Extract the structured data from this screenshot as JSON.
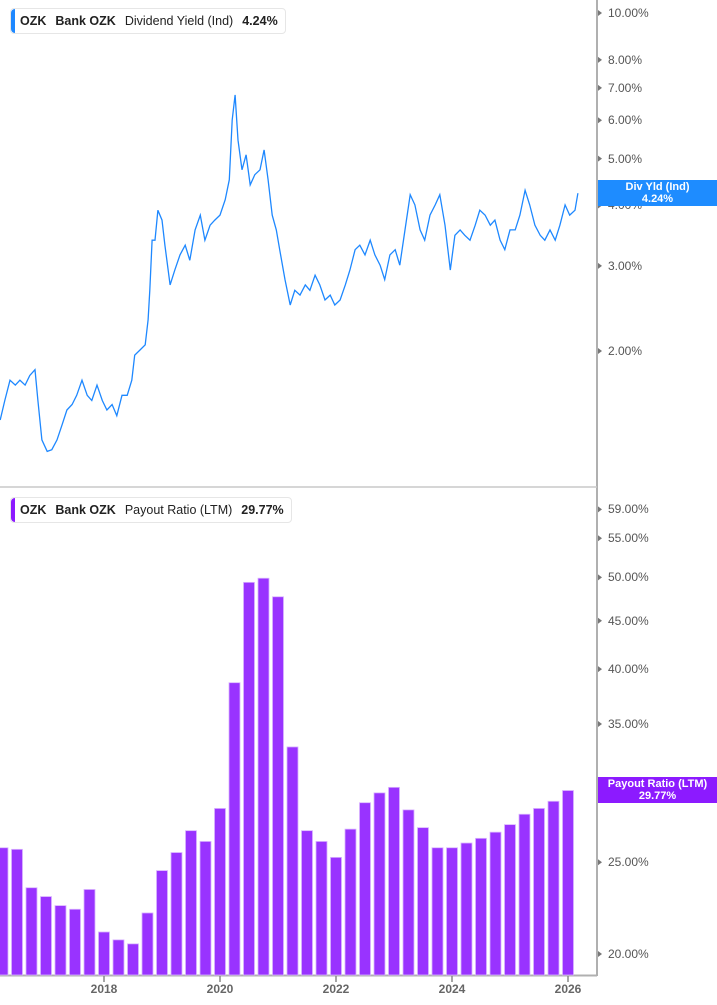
{
  "colors": {
    "yield_line": "#1e88ff",
    "payout_bar": "#9933ff",
    "payout_tag": "#8c1aff",
    "yield_tag": "#1e8cff"
  },
  "top_legend": {
    "ticker": "OZK",
    "name": "Bank OZK",
    "metric": "Dividend Yield (Ind)",
    "value": "4.24%"
  },
  "bottom_legend": {
    "ticker": "OZK",
    "name": "Bank OZK",
    "metric": "Payout Ratio (LTM)",
    "value": "29.77%"
  },
  "top_tag": {
    "label": "Div Yld (Ind)",
    "value": "4.24%"
  },
  "bottom_tag": {
    "label": "Payout Ratio (LTM)",
    "value": "29.77%"
  },
  "chart_data": [
    {
      "type": "line",
      "name": "Dividend Yield (Ind)",
      "y_scale": "log",
      "yticks": [
        2,
        3,
        4,
        5,
        6,
        7,
        8,
        10
      ],
      "ytick_labels": [
        "2.00%",
        "3.00%",
        "4.00%",
        "5.00%",
        "6.00%",
        "7.00%",
        "8.00%",
        "10.00%"
      ],
      "x": [
        2016.21,
        2016.29,
        2016.38,
        2016.47,
        2016.55,
        2016.64,
        2016.72,
        2016.81,
        2016.86,
        2016.93,
        2017.02,
        2017.1,
        2017.19,
        2017.28,
        2017.36,
        2017.45,
        2017.53,
        2017.62,
        2017.71,
        2017.79,
        2017.88,
        2017.97,
        2018.05,
        2018.14,
        2018.22,
        2018.31,
        2018.4,
        2018.48,
        2018.53,
        2018.62,
        2018.71,
        2018.76,
        2018.79,
        2018.83,
        2018.88,
        2018.93,
        2019.0,
        2019.05,
        2019.14,
        2019.22,
        2019.31,
        2019.4,
        2019.48,
        2019.57,
        2019.66,
        2019.74,
        2019.83,
        2019.91,
        2020.0,
        2020.09,
        2020.16,
        2020.21,
        2020.26,
        2020.31,
        2020.38,
        2020.45,
        2020.52,
        2020.6,
        2020.69,
        2020.76,
        2020.83,
        2020.9,
        2020.97,
        2021.03,
        2021.12,
        2021.21,
        2021.29,
        2021.38,
        2021.47,
        2021.55,
        2021.64,
        2021.72,
        2021.81,
        2021.9,
        2021.98,
        2022.07,
        2022.16,
        2022.24,
        2022.33,
        2022.41,
        2022.5,
        2022.59,
        2022.67,
        2022.76,
        2022.84,
        2022.93,
        2023.02,
        2023.1,
        2023.19,
        2023.28,
        2023.36,
        2023.45,
        2023.53,
        2023.62,
        2023.71,
        2023.79,
        2023.88,
        2023.97,
        2024.05,
        2024.14,
        2024.22,
        2024.31,
        2024.4,
        2024.48,
        2024.57,
        2024.66,
        2024.74,
        2024.83,
        2024.91,
        2025.0,
        2025.09,
        2025.17,
        2025.26,
        2025.34,
        2025.43,
        2025.52,
        2025.6,
        2025.69,
        2025.78,
        2025.86,
        2025.95,
        2026.03,
        2026.12,
        2026.17
      ],
      "y": [
        1.44,
        1.58,
        1.74,
        1.7,
        1.74,
        1.7,
        1.78,
        1.83,
        1.58,
        1.31,
        1.24,
        1.25,
        1.31,
        1.41,
        1.51,
        1.55,
        1.62,
        1.74,
        1.62,
        1.58,
        1.7,
        1.58,
        1.51,
        1.55,
        1.47,
        1.62,
        1.62,
        1.74,
        1.96,
        2.01,
        2.06,
        2.32,
        2.67,
        3.39,
        3.39,
        3.91,
        3.73,
        3.31,
        2.74,
        2.94,
        3.16,
        3.31,
        3.08,
        3.56,
        3.82,
        3.39,
        3.64,
        3.73,
        3.82,
        4.11,
        4.52,
        6.01,
        6.77,
        5.46,
        4.74,
        5.09,
        4.41,
        4.63,
        4.74,
        5.21,
        4.52,
        3.82,
        3.56,
        3.24,
        2.81,
        2.49,
        2.67,
        2.61,
        2.74,
        2.67,
        2.87,
        2.74,
        2.55,
        2.61,
        2.49,
        2.55,
        2.74,
        2.94,
        3.24,
        3.31,
        3.16,
        3.39,
        3.16,
        3.01,
        2.81,
        3.16,
        3.24,
        3.01,
        3.56,
        4.21,
        4.01,
        3.56,
        3.39,
        3.82,
        4.01,
        4.21,
        3.64,
        2.94,
        3.47,
        3.56,
        3.47,
        3.39,
        3.64,
        3.91,
        3.82,
        3.64,
        3.73,
        3.39,
        3.24,
        3.56,
        3.56,
        3.82,
        4.3,
        4.01,
        3.64,
        3.47,
        3.39,
        3.56,
        3.39,
        3.64,
        4.01,
        3.82,
        3.91,
        4.24
      ]
    },
    {
      "type": "bar",
      "name": "Payout Ratio (LTM)",
      "y_scale": "log",
      "yticks": [
        20,
        25,
        35,
        40,
        45,
        50,
        55,
        59
      ],
      "ytick_labels": [
        "20.00%",
        "25.00%",
        "35.00%",
        "40.00%",
        "45.00%",
        "50.00%",
        "55.00%",
        "59.00%"
      ],
      "categories": [
        "2016Q1",
        "2016Q2",
        "2016Q3",
        "2016Q4",
        "2017Q1",
        "2017Q2",
        "2017Q3",
        "2017Q4",
        "2018Q1",
        "2018Q2",
        "2018Q3",
        "2018Q4",
        "2019Q1",
        "2019Q2",
        "2019Q3",
        "2019Q4",
        "2020Q1",
        "2020Q2",
        "2020Q3",
        "2020Q4",
        "2021Q1",
        "2021Q2",
        "2021Q3",
        "2021Q4",
        "2022Q1",
        "2022Q2",
        "2022Q3",
        "2022Q4",
        "2023Q1",
        "2023Q2",
        "2023Q3",
        "2023Q4",
        "2024Q1",
        "2024Q2",
        "2024Q3",
        "2024Q4",
        "2025Q1",
        "2025Q2",
        "2025Q3",
        "2025Q4"
      ],
      "values": [
        25.9,
        25.8,
        23.5,
        23.0,
        22.5,
        22.3,
        23.4,
        21.1,
        20.7,
        20.5,
        22.1,
        24.5,
        25.6,
        27.0,
        26.3,
        28.5,
        38.7,
        49.4,
        49.9,
        47.7,
        33.1,
        27.0,
        26.3,
        25.3,
        27.1,
        28.9,
        29.6,
        30.0,
        28.4,
        27.2,
        25.9,
        25.9,
        26.2,
        26.5,
        26.9,
        27.4,
        28.1,
        28.5,
        29.0,
        29.77
      ]
    }
  ],
  "x_axis": {
    "ticks": [
      2018,
      2020,
      2022,
      2024,
      2026
    ],
    "labels": [
      "2018",
      "2020",
      "2022",
      "2024",
      "2026"
    ]
  }
}
